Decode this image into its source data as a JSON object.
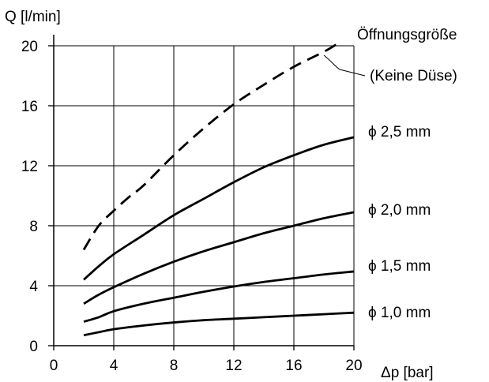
{
  "chart_data": {
    "type": "line",
    "title": "",
    "xlabel": "Δp [bar]",
    "ylabel": "Q [l/min]",
    "xlim": [
      0,
      20
    ],
    "ylim": [
      0,
      20
    ],
    "x_ticks": [
      "0",
      "4",
      "8",
      "12",
      "16",
      "20"
    ],
    "y_ticks": [
      "0",
      "4",
      "8",
      "12",
      "16",
      "20"
    ],
    "grid": true,
    "legend": "inline-right",
    "header_label": "Öffnungsgröße",
    "series": [
      {
        "name": "(Keine Düse)",
        "style": "dashed",
        "x": [
          2,
          3,
          4,
          5,
          6,
          8,
          10,
          12,
          14,
          16,
          18,
          19
        ],
        "y": [
          6.4,
          8.0,
          9.0,
          9.9,
          10.7,
          12.7,
          14.5,
          16.1,
          17.4,
          18.6,
          19.6,
          20.2
        ]
      },
      {
        "name": "ϕ 2,5 mm",
        "style": "solid",
        "x": [
          2,
          3,
          4,
          6,
          8,
          10,
          12,
          14,
          16,
          18,
          20
        ],
        "y": [
          4.4,
          5.3,
          6.1,
          7.4,
          8.7,
          9.8,
          10.9,
          11.9,
          12.7,
          13.4,
          13.9
        ]
      },
      {
        "name": "ϕ 2,0 mm",
        "style": "solid",
        "x": [
          2,
          3,
          4,
          6,
          8,
          10,
          12,
          14,
          16,
          18,
          20
        ],
        "y": [
          2.8,
          3.4,
          3.9,
          4.8,
          5.6,
          6.3,
          6.9,
          7.5,
          8.0,
          8.5,
          8.9
        ]
      },
      {
        "name": "ϕ 1,5 mm",
        "style": "solid",
        "x": [
          2,
          3,
          4,
          6,
          8,
          10,
          12,
          14,
          16,
          18,
          20
        ],
        "y": [
          1.6,
          1.9,
          2.3,
          2.8,
          3.2,
          3.6,
          3.95,
          4.25,
          4.5,
          4.75,
          4.95
        ]
      },
      {
        "name": "ϕ 1,0 mm",
        "style": "solid",
        "x": [
          2,
          3,
          4,
          6,
          8,
          10,
          12,
          14,
          16,
          18,
          20
        ],
        "y": [
          0.7,
          0.9,
          1.1,
          1.35,
          1.55,
          1.7,
          1.8,
          1.9,
          2.0,
          2.1,
          2.2
        ]
      }
    ]
  },
  "colors": {
    "line": "#000000",
    "grid": "#000000",
    "background": "#ffffff"
  }
}
